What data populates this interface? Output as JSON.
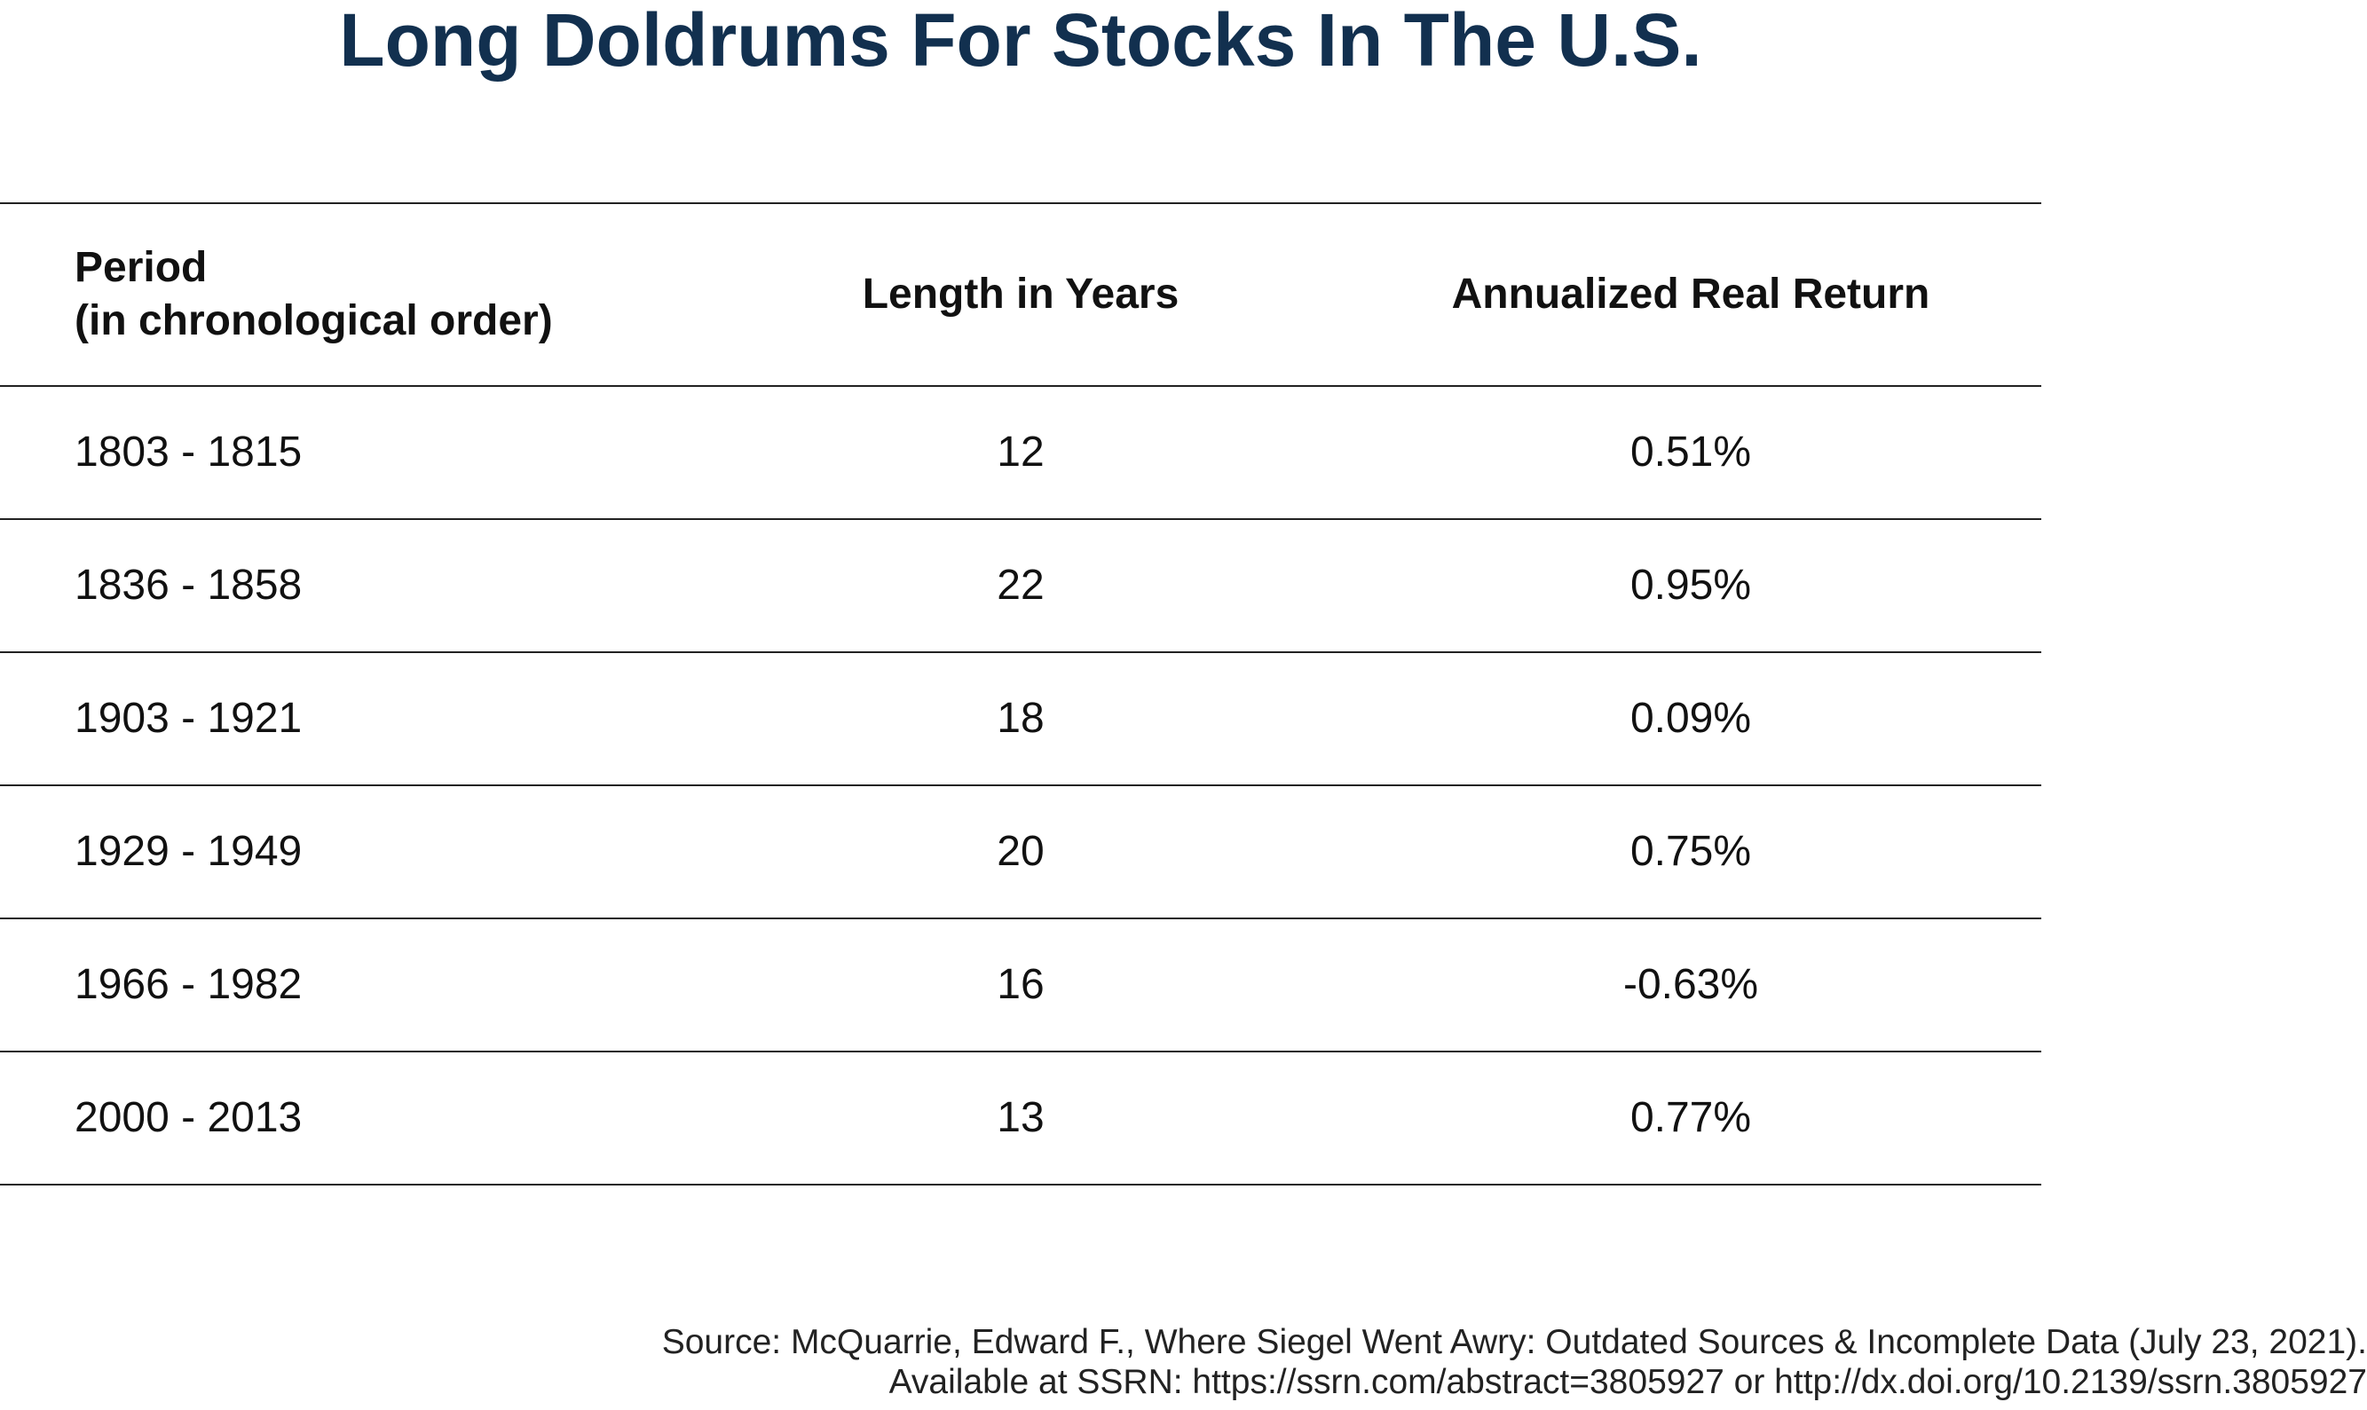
{
  "title": "Long Doldrums For Stocks In The U.S.",
  "table": {
    "headers": {
      "period_line1": "Period",
      "period_line2": "(in chronological order)",
      "length": "Length in Years",
      "return": "Annualized Real Return"
    },
    "rows": [
      {
        "period": "1803 - 1815",
        "length": "12",
        "return": "0.51%"
      },
      {
        "period": "1836 - 1858",
        "length": "22",
        "return": "0.95%"
      },
      {
        "period": "1903 - 1921",
        "length": "18",
        "return": "0.09%"
      },
      {
        "period": "1929 - 1949",
        "length": "20",
        "return": "0.75%"
      },
      {
        "period": "1966 - 1982",
        "length": "16",
        "return": "-0.63%"
      },
      {
        "period": "2000 - 2013",
        "length": "13",
        "return": "0.77%"
      }
    ]
  },
  "source": {
    "line1": "Source: McQuarrie, Edward F., Where Siegel Went Awry: Outdated Sources & Incomplete Data (July 23, 2021).",
    "line2": "Available at SSRN: https://ssrn.com/abstract=3805927 or http://dx.doi.org/10.2139/ssrn.3805927"
  },
  "colors": {
    "title": "#12304f",
    "rule": "#222222"
  }
}
